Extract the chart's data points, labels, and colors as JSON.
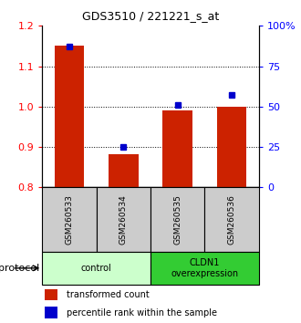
{
  "title": "GDS3510 / 221221_s_at",
  "samples": [
    "GSM260533",
    "GSM260534",
    "GSM260535",
    "GSM260536"
  ],
  "red_values": [
    1.15,
    0.882,
    0.99,
    1.0
  ],
  "blue_values": [
    87,
    25,
    51,
    57
  ],
  "ylim_left": [
    0.8,
    1.2
  ],
  "ylim_right": [
    0,
    100
  ],
  "yticks_left": [
    0.8,
    0.9,
    1.0,
    1.1,
    1.2
  ],
  "yticks_right": [
    0,
    25,
    50,
    75,
    100
  ],
  "ytick_labels_right": [
    "0",
    "25",
    "50",
    "75",
    "100%"
  ],
  "grid_lines": [
    0.9,
    1.0,
    1.1
  ],
  "bar_color": "#cc2200",
  "dot_color": "#0000cc",
  "bar_bottom": 0.8,
  "groups": [
    {
      "label": "control",
      "start": 0,
      "end": 2,
      "color": "#ccffcc"
    },
    {
      "label": "CLDN1\noverexpression",
      "start": 2,
      "end": 4,
      "color": "#33cc33"
    }
  ],
  "sample_box_color": "#cccccc",
  "legend_red_label": "transformed count",
  "legend_blue_label": "percentile rank within the sample",
  "protocol_label": "protocol"
}
